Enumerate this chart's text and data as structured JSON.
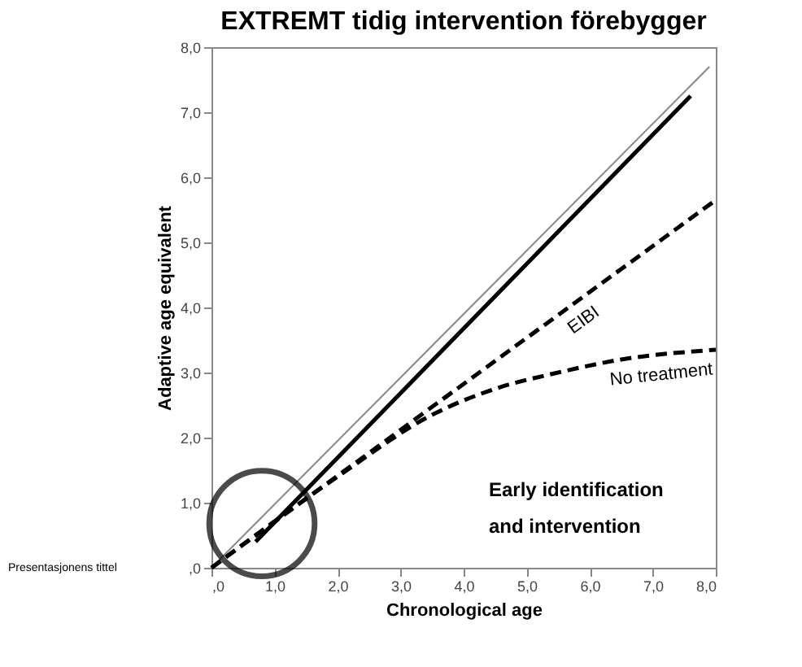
{
  "chart_data": {
    "type": "line",
    "title": "EXTREMT tidig intervention förebygger",
    "xlabel": "Chronological age",
    "ylabel": "Adaptive age equivalent",
    "xlim": [
      0,
      8
    ],
    "ylim": [
      0,
      8
    ],
    "xticks": [
      {
        "value": 0,
        "label": ",0"
      },
      {
        "value": 1,
        "label": "1,0"
      },
      {
        "value": 2,
        "label": "2,0"
      },
      {
        "value": 3,
        "label": "3,0"
      },
      {
        "value": 4,
        "label": "4,0"
      },
      {
        "value": 5,
        "label": "5,0"
      },
      {
        "value": 6,
        "label": "6,0"
      },
      {
        "value": 7,
        "label": "7,0"
      },
      {
        "value": 8,
        "label": "8,0"
      }
    ],
    "yticks": [
      {
        "value": 0,
        "label": ",0"
      },
      {
        "value": 1,
        "label": "1,0"
      },
      {
        "value": 2,
        "label": "2,0"
      },
      {
        "value": 3,
        "label": "3,0"
      },
      {
        "value": 4,
        "label": "4,0"
      },
      {
        "value": 5,
        "label": "5,0"
      },
      {
        "value": 6,
        "label": "6,0"
      },
      {
        "value": 7,
        "label": "7,0"
      },
      {
        "value": 8,
        "label": "8,0"
      }
    ],
    "grid": false,
    "series": [
      {
        "color": "#888888",
        "x": [
          0,
          7.9
        ],
        "values": [
          0,
          7.7
        ],
        "line_style": "solid"
      },
      {
        "color": "#000000",
        "x": [
          0.7,
          7.6
        ],
        "values": [
          0.4,
          7.25
        ],
        "line_style": "solid"
      },
      {
        "name": "EIBI",
        "color": "#000000",
        "x": [
          0,
          8
        ],
        "values": [
          0,
          5.65
        ],
        "line_style": "dashed"
      },
      {
        "name": "No treatment",
        "color": "#000000",
        "x": [
          0,
          2,
          3.5,
          4.5,
          5.5,
          6.5,
          8
        ],
        "values": [
          0,
          1.4,
          2.35,
          2.75,
          3.0,
          3.2,
          3.35
        ],
        "line_style": "dashed"
      }
    ],
    "annotations": [
      "Early identification and intervention",
      "Presentasjonens tittel"
    ]
  }
}
